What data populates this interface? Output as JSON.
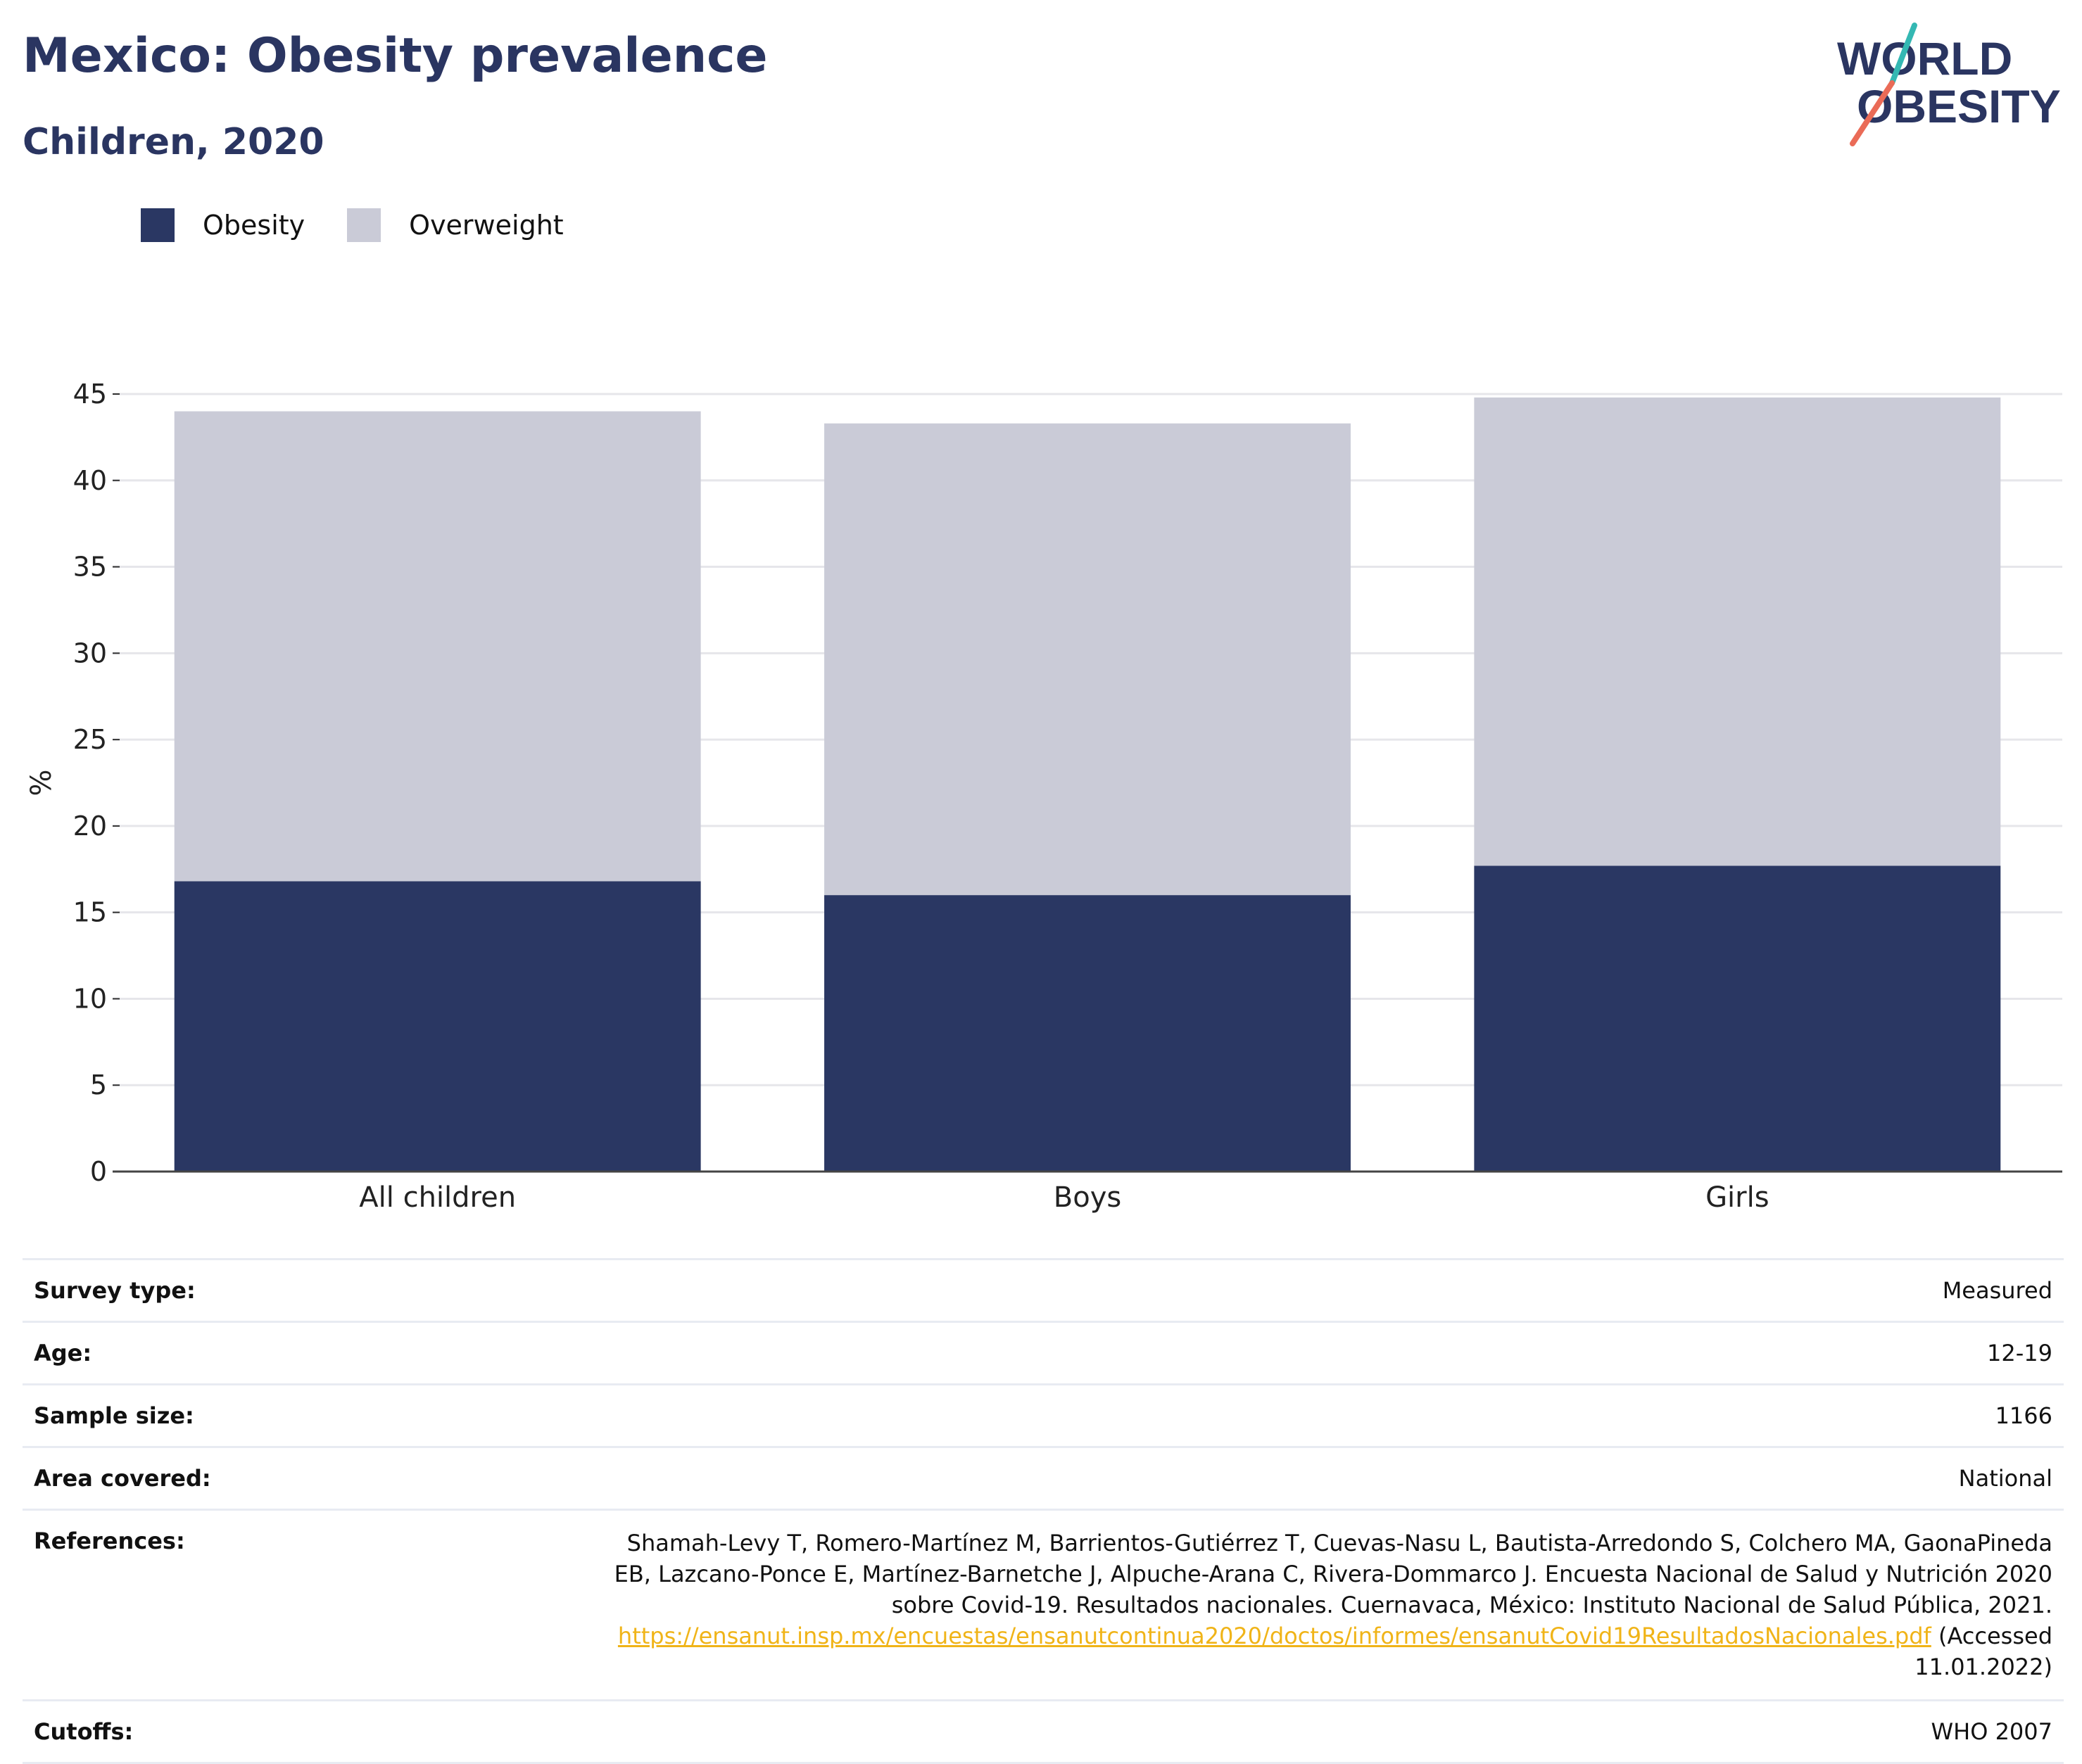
{
  "header": {
    "title": "Mexico: Obesity prevalence",
    "subtitle": "Children, 2020"
  },
  "logo": {
    "line1": "WORLD",
    "line2": "OBESITY"
  },
  "legend": {
    "items": [
      {
        "label": "Obesity",
        "color": "#2a3763"
      },
      {
        "label": "Overweight",
        "color": "#cacbd7"
      }
    ]
  },
  "chart_data": {
    "type": "bar",
    "stacked": true,
    "categories": [
      "All children",
      "Boys",
      "Girls"
    ],
    "series": [
      {
        "name": "Obesity",
        "color": "#2a3763",
        "values": [
          16.8,
          16.0,
          17.7
        ]
      },
      {
        "name": "Overweight",
        "color": "#cacbd7",
        "values": [
          27.2,
          27.3,
          27.1
        ]
      }
    ],
    "ylabel": "%",
    "ylim": [
      0,
      45
    ],
    "yticks": [
      0,
      5,
      10,
      15,
      20,
      25,
      30,
      35,
      40,
      45
    ],
    "grid": true,
    "legend_position": "top-left"
  },
  "info": {
    "survey_type": {
      "label": "Survey type:",
      "value": "Measured"
    },
    "age": {
      "label": "Age:",
      "value": "12-19"
    },
    "sample_size": {
      "label": "Sample size:",
      "value": "1166"
    },
    "area": {
      "label": "Area covered:",
      "value": "National"
    },
    "references": {
      "label": "References:",
      "text": "Shamah-Levy T, Romero-Martínez M, Barrientos-Gutiérrez T, Cuevas-Nasu L, Bautista-Arredondo S, Colchero MA, GaonaPineda EB, Lazcano-Ponce E, Martínez-Barnetche J, Alpuche-Arana C, Rivera-Dommarco J. Encuesta Nacional de Salud y Nutrición 2020 sobre Covid-19. Resultados nacionales. Cuernavaca, México: Instituto Nacional de Salud Pública, 2021.",
      "link": "https://ensanut.insp.mx/encuestas/ensanutcontinua2020/doctos/informes/ensanutCovid19ResultadosNacionales.pdf",
      "suffix": "(Accessed 11.01.2022)"
    },
    "cutoffs": {
      "label": "Cutoffs:",
      "value": "WHO 2007"
    }
  }
}
